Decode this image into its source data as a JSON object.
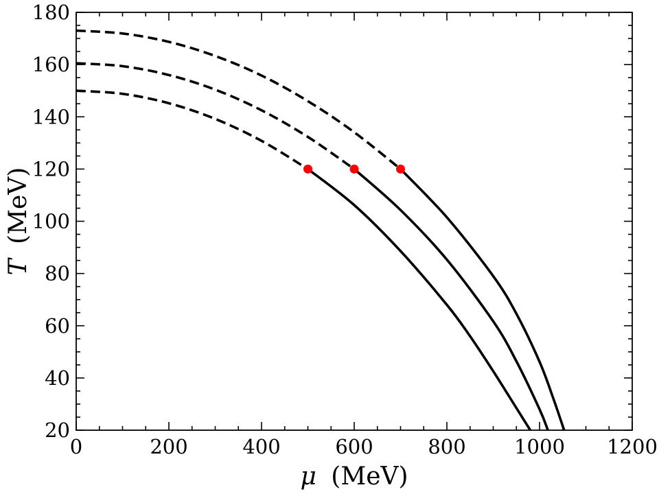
{
  "chart_data": {
    "type": "line",
    "xlabel": {
      "symbol": "μ",
      "unit": "(MeV)"
    },
    "ylabel": {
      "symbol": "T",
      "unit": "(MeV)"
    },
    "xlim": [
      0,
      1200
    ],
    "ylim": [
      20,
      180
    ],
    "xticks": [
      0,
      200,
      400,
      600,
      800,
      1000,
      1200
    ],
    "yticks": [
      20,
      40,
      60,
      80,
      100,
      120,
      140,
      160,
      180
    ],
    "grid": false,
    "legend": "none",
    "series": [
      {
        "T0": 150,
        "muCep": 500,
        "Tcep": 120,
        "muEnd": 980,
        "points": [
          [
            0,
            150
          ],
          [
            100,
            148.8
          ],
          [
            200,
            145.2
          ],
          [
            300,
            139.2
          ],
          [
            400,
            130.8
          ],
          [
            500,
            120
          ],
          [
            600,
            106.2
          ],
          [
            700,
            88.6
          ],
          [
            800,
            68
          ],
          [
            850,
            56
          ],
          [
            900,
            42.6
          ],
          [
            950,
            28.5
          ],
          [
            980,
            20
          ]
        ]
      },
      {
        "T0": 160.5,
        "muCep": 600,
        "Tcep": 120,
        "muEnd": 1018,
        "points": [
          [
            0,
            160.5
          ],
          [
            100,
            159.4
          ],
          [
            200,
            156
          ],
          [
            300,
            150.4
          ],
          [
            400,
            142.5
          ],
          [
            500,
            132.3
          ],
          [
            600,
            120
          ],
          [
            700,
            104.3
          ],
          [
            800,
            85.3
          ],
          [
            900,
            61.7
          ],
          [
            950,
            46.4
          ],
          [
            1000,
            28
          ],
          [
            1018,
            20
          ]
        ]
      },
      {
        "T0": 173,
        "muCep": 700,
        "Tcep": 120,
        "muEnd": 1053,
        "points": [
          [
            0,
            173
          ],
          [
            100,
            171.9
          ],
          [
            200,
            168.7
          ],
          [
            300,
            163.3
          ],
          [
            400,
            155.8
          ],
          [
            500,
            146
          ],
          [
            600,
            134.1
          ],
          [
            700,
            120
          ],
          [
            800,
            101.5
          ],
          [
            900,
            79
          ],
          [
            950,
            64.6
          ],
          [
            1000,
            46.2
          ],
          [
            1030,
            32
          ],
          [
            1053,
            20
          ]
        ]
      }
    ],
    "markers": [
      {
        "x": 500,
        "y": 120
      },
      {
        "x": 600,
        "y": 120
      },
      {
        "x": 700,
        "y": 120
      }
    ],
    "colors": {
      "line": "#000000",
      "marker": "#ff0000"
    }
  }
}
